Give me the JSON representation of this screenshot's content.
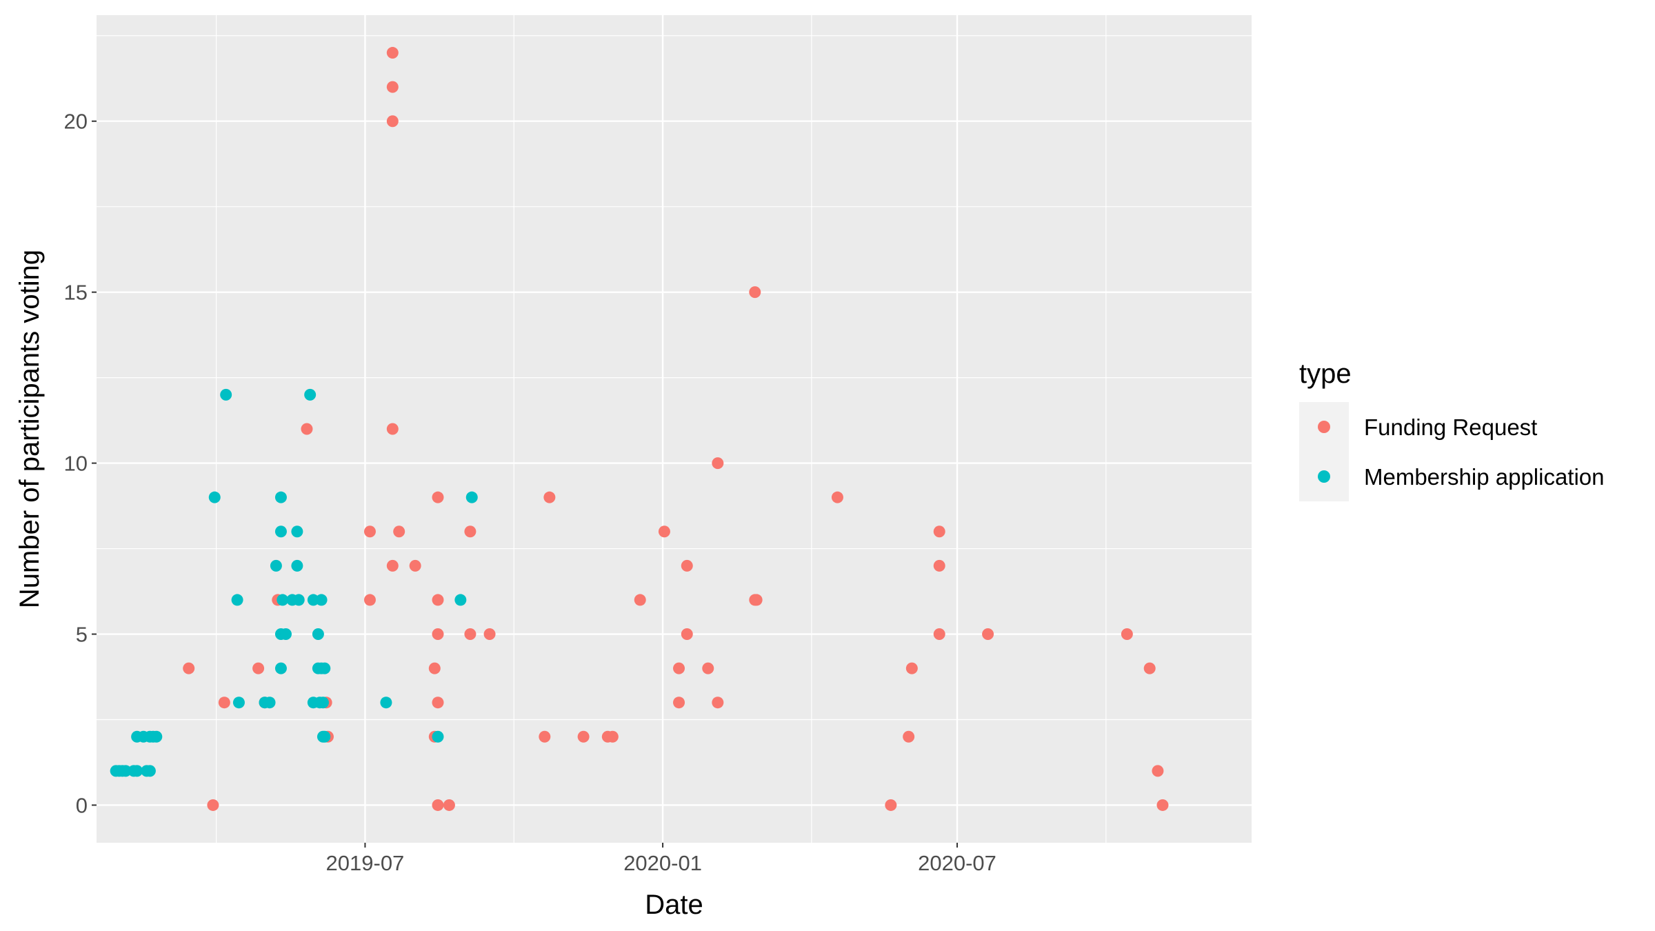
{
  "chart_data": {
    "type": "scatter",
    "title": "",
    "xlabel": "Date",
    "ylabel": "Number of participants voting",
    "x_axis": {
      "type": "date",
      "range": [
        "2019-01-16",
        "2020-12-30"
      ],
      "ticks": [
        "2019-07-01",
        "2020-01-01",
        "2020-07-01"
      ],
      "tick_labels": [
        "2019-07",
        "2020-01",
        "2020-07"
      ]
    },
    "y_axis": {
      "range": [
        -1.1,
        23.1
      ],
      "ticks": [
        0,
        5,
        10,
        15,
        20
      ],
      "tick_labels": [
        "0",
        "5",
        "10",
        "15",
        "20"
      ]
    },
    "grid": true,
    "legend": {
      "title": "type",
      "position": "right",
      "entries": [
        "Funding Request",
        "Membership application"
      ]
    },
    "colors": {
      "panel_background": "#EBEBEB",
      "grid_major": "#FFFFFF",
      "funding": "#F8766D",
      "membership": "#00BFC4"
    },
    "series": [
      {
        "name": "Funding Request",
        "color": "#F8766D",
        "points": [
          [
            "2019-03-14",
            4
          ],
          [
            "2019-03-29",
            0
          ],
          [
            "2019-04-05",
            3
          ],
          [
            "2019-04-26",
            4
          ],
          [
            "2019-04-30",
            3
          ],
          [
            "2019-05-08",
            6
          ],
          [
            "2019-05-26",
            11
          ],
          [
            "2019-06-07",
            3
          ],
          [
            "2019-06-08",
            2
          ],
          [
            "2019-07-04",
            8
          ],
          [
            "2019-07-04",
            6
          ],
          [
            "2019-07-18",
            22
          ],
          [
            "2019-07-18",
            21
          ],
          [
            "2019-07-18",
            20
          ],
          [
            "2019-07-18",
            11
          ],
          [
            "2019-07-18",
            7
          ],
          [
            "2019-07-22",
            8
          ],
          [
            "2019-08-01",
            7
          ],
          [
            "2019-08-13",
            4
          ],
          [
            "2019-08-13",
            2
          ],
          [
            "2019-08-15",
            9
          ],
          [
            "2019-08-15",
            6
          ],
          [
            "2019-08-15",
            5
          ],
          [
            "2019-08-15",
            3
          ],
          [
            "2019-08-15",
            0
          ],
          [
            "2019-08-22",
            0
          ],
          [
            "2019-09-04",
            8
          ],
          [
            "2019-09-04",
            5
          ],
          [
            "2019-09-16",
            5
          ],
          [
            "2019-10-20",
            2
          ],
          [
            "2019-10-23",
            9
          ],
          [
            "2019-11-13",
            2
          ],
          [
            "2019-11-28",
            2
          ],
          [
            "2019-12-01",
            2
          ],
          [
            "2019-12-18",
            6
          ],
          [
            "2020-01-02",
            8
          ],
          [
            "2020-01-11",
            4
          ],
          [
            "2020-01-11",
            3
          ],
          [
            "2020-01-16",
            7
          ],
          [
            "2020-01-16",
            5
          ],
          [
            "2020-01-29",
            4
          ],
          [
            "2020-02-04",
            10
          ],
          [
            "2020-02-04",
            3
          ],
          [
            "2020-02-27",
            15
          ],
          [
            "2020-02-27",
            6
          ],
          [
            "2020-02-28",
            6
          ],
          [
            "2020-04-18",
            9
          ],
          [
            "2020-05-21",
            0
          ],
          [
            "2020-06-01",
            2
          ],
          [
            "2020-06-03",
            4
          ],
          [
            "2020-06-20",
            8
          ],
          [
            "2020-06-20",
            7
          ],
          [
            "2020-06-20",
            5
          ],
          [
            "2020-07-20",
            5
          ],
          [
            "2020-10-14",
            5
          ],
          [
            "2020-10-28",
            4
          ],
          [
            "2020-11-02",
            1
          ],
          [
            "2020-11-05",
            0
          ]
        ]
      },
      {
        "name": "Membership application",
        "color": "#00BFC4",
        "points": [
          [
            "2019-01-28",
            1
          ],
          [
            "2019-01-30",
            1
          ],
          [
            "2019-02-01",
            1
          ],
          [
            "2019-02-03",
            1
          ],
          [
            "2019-02-08",
            1
          ],
          [
            "2019-02-10",
            1
          ],
          [
            "2019-02-10",
            2
          ],
          [
            "2019-02-14",
            2
          ],
          [
            "2019-02-16",
            1
          ],
          [
            "2019-02-18",
            2
          ],
          [
            "2019-02-18",
            1
          ],
          [
            "2019-02-20",
            2
          ],
          [
            "2019-02-22",
            2
          ],
          [
            "2019-03-30",
            9
          ],
          [
            "2019-04-06",
            12
          ],
          [
            "2019-04-13",
            6
          ],
          [
            "2019-04-14",
            3
          ],
          [
            "2019-04-30",
            3
          ],
          [
            "2019-05-03",
            3
          ],
          [
            "2019-05-07",
            7
          ],
          [
            "2019-05-10",
            9
          ],
          [
            "2019-05-10",
            8
          ],
          [
            "2019-05-10",
            5
          ],
          [
            "2019-05-10",
            4
          ],
          [
            "2019-05-11",
            6
          ],
          [
            "2019-05-13",
            5
          ],
          [
            "2019-05-17",
            6
          ],
          [
            "2019-05-20",
            8
          ],
          [
            "2019-05-20",
            7
          ],
          [
            "2019-05-21",
            6
          ],
          [
            "2019-05-28",
            12
          ],
          [
            "2019-05-30",
            6
          ],
          [
            "2019-05-30",
            3
          ],
          [
            "2019-06-02",
            5
          ],
          [
            "2019-06-02",
            4
          ],
          [
            "2019-06-03",
            3
          ],
          [
            "2019-06-04",
            6
          ],
          [
            "2019-06-04",
            4
          ],
          [
            "2019-06-05",
            2
          ],
          [
            "2019-06-05",
            3
          ],
          [
            "2019-06-06",
            4
          ],
          [
            "2019-06-06",
            2
          ],
          [
            "2019-07-14",
            3
          ],
          [
            "2019-08-15",
            2
          ],
          [
            "2019-08-29",
            6
          ],
          [
            "2019-09-05",
            9
          ]
        ]
      }
    ]
  }
}
